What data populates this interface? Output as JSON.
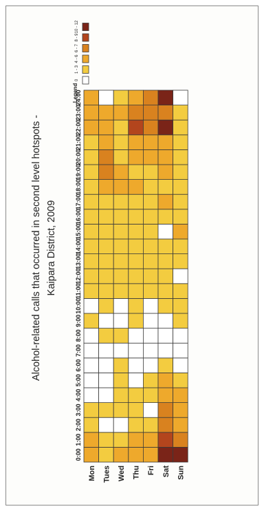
{
  "chart_data": {
    "type": "heatmap",
    "title": "Alcohol-related calls that occurred in second level hotspots -",
    "subtitle": "Kaipara District, 2009",
    "days": [
      "Mon",
      "Tues",
      "Wed",
      "Thu",
      "Fri",
      "Sat",
      "Sun"
    ],
    "hours": [
      "0:00",
      "1:00",
      "2:00",
      "3:00",
      "4:00",
      "5:00",
      "6:00",
      "7:00",
      "8:00",
      "9:00",
      "10:00",
      "11:00",
      "12:00",
      "13:00",
      "14:00",
      "15:00",
      "16:00",
      "17:00",
      "18:00",
      "19:00",
      "20:00",
      "21:00",
      "22:00",
      "23:00",
      "24:00"
    ],
    "value_unit": "legend class index (0 = 0, 1 = 1-3, 2 = 4-6, 3 = 6-7, 4 = 8-9, 5 = 10-12)",
    "levels": {
      "Mon": [
        2,
        2,
        1,
        1,
        0,
        0,
        0,
        0,
        0,
        1,
        0,
        1,
        1,
        1,
        1,
        1,
        1,
        1,
        1,
        1,
        1,
        1,
        2,
        2,
        2
      ],
      "Tues": [
        1,
        1,
        0,
        1,
        0,
        0,
        0,
        0,
        1,
        0,
        1,
        1,
        1,
        1,
        1,
        1,
        1,
        1,
        2,
        3,
        3,
        2,
        2,
        2,
        0
      ],
      "Wed": [
        2,
        1,
        0,
        1,
        1,
        1,
        1,
        0,
        1,
        0,
        0,
        1,
        1,
        1,
        1,
        1,
        1,
        1,
        2,
        2,
        1,
        1,
        1,
        2,
        1
      ],
      "Thu": [
        2,
        2,
        1,
        1,
        1,
        0,
        0,
        0,
        0,
        1,
        1,
        1,
        1,
        1,
        1,
        1,
        1,
        1,
        2,
        1,
        2,
        2,
        4,
        3,
        2
      ],
      "Fri": [
        2,
        2,
        1,
        0,
        1,
        1,
        0,
        0,
        0,
        0,
        0,
        1,
        1,
        1,
        1,
        1,
        1,
        1,
        1,
        1,
        2,
        2,
        3,
        3,
        3
      ],
      "Sat": [
        5,
        4,
        3,
        3,
        2,
        2,
        1,
        0,
        0,
        0,
        1,
        1,
        1,
        1,
        1,
        0,
        1,
        2,
        1,
        2,
        2,
        2,
        5,
        3,
        5
      ],
      "Sun": [
        5,
        3,
        2,
        2,
        2,
        1,
        0,
        0,
        0,
        1,
        1,
        1,
        0,
        1,
        1,
        2,
        1,
        1,
        1,
        1,
        1,
        1,
        1,
        1,
        0
      ]
    },
    "legend": {
      "title": "Legend",
      "entries": [
        "0",
        "1 - 3",
        "4 - 6",
        "6 - 7",
        "8 - 9",
        "10 - 12"
      ],
      "colors": [
        "#ffffff",
        "#f3cc40",
        "#eea92c",
        "#d9821f",
        "#b3451d",
        "#7a2418"
      ]
    }
  }
}
